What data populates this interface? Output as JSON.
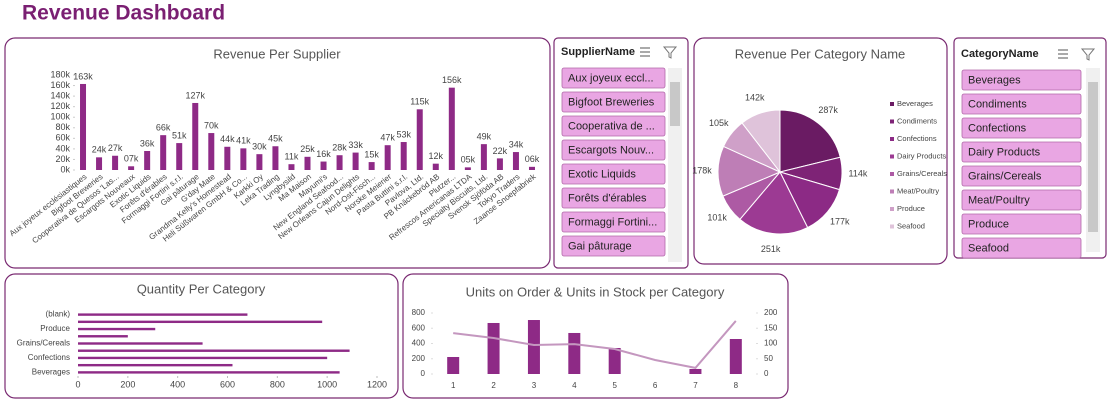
{
  "title": "Revenue Dashboard",
  "chart_data": [
    {
      "type": "bar",
      "title": "Revenue Per Supplier",
      "color": "#8e2a86",
      "categories": [
        "Aux joyeux ecclésiastiques",
        "Bigfoot Breweries",
        "Cooperativa de Quesos 'Las...",
        "Escargots Nouveaux",
        "Exotic Liquids",
        "Forêts d'érables",
        "Formaggi Fortini s.r.l.",
        "Gai pâturage",
        "G'day Mate",
        "Grandma Kelly's Homestead",
        "Heli Süßwaren GmbH & Co...",
        "Karkki Oy",
        "Leka Trading",
        "Lyngbysild",
        "Ma Maison",
        "Mayumi's",
        "New England Seafood...",
        "New Orleans Cajun Delights",
        "Nord-Ost-Fisch...",
        "Norske Meierier",
        "Pasta Buttini s.r.l.",
        "Pavlova, Ltd.",
        "PB Knäckebröd AB",
        "Plutzer...",
        "Refrescos Americanas LTDA",
        "Specialty Biscuits, Ltd.",
        "Svensk Sjöföda AB",
        "Tokyo Traders",
        "Zaanse Snoepfabriek"
      ],
      "values": [
        163000,
        24000,
        27000,
        7000,
        36000,
        66000,
        51000,
        127000,
        70000,
        44000,
        41000,
        30000,
        45000,
        11000,
        25000,
        16000,
        28000,
        33000,
        15000,
        47000,
        53000,
        115000,
        12000,
        156000,
        5000,
        49000,
        22000,
        34000,
        6000
      ],
      "value_labels": [
        "163k",
        "24k",
        "27k",
        "07k",
        "36k",
        "66k",
        "51k",
        "127k",
        "70k",
        "44k",
        "41k",
        "30k",
        "45k",
        "11k",
        "25k",
        "16k",
        "28k",
        "33k",
        "15k",
        "47k",
        "53k",
        "115k",
        "12k",
        "156k",
        "05k",
        "49k",
        "22k",
        "34k",
        "06k"
      ],
      "ylim": [
        0,
        180000
      ],
      "yticks": [
        {
          "value": 0,
          "label": "0k"
        },
        {
          "value": 20000,
          "label": "20k"
        },
        {
          "value": 40000,
          "label": "40k"
        },
        {
          "value": 60000,
          "label": "60k"
        },
        {
          "value": 80000,
          "label": "80k"
        },
        {
          "value": 100000,
          "label": "100k"
        },
        {
          "value": 120000,
          "label": "120k"
        },
        {
          "value": 140000,
          "label": "140k"
        },
        {
          "value": 160000,
          "label": "160k"
        },
        {
          "value": 180000,
          "label": "180k"
        }
      ]
    },
    {
      "type": "pie",
      "title": "Revenue Per Category Name",
      "categories": [
        "Beverages",
        "Condiments",
        "Confections",
        "Dairy Products",
        "Grains/Cereals",
        "Meat/Poultry",
        "Produce",
        "Seafood"
      ],
      "values": [
        287000,
        114000,
        177000,
        251000,
        101000,
        178000,
        105000,
        142000
      ],
      "value_labels": [
        "287k",
        "114k",
        "177k",
        "251k",
        "101k",
        "178k",
        "105k",
        "142k"
      ],
      "colors": [
        "#6a1b63",
        "#7e2376",
        "#8c2a85",
        "#9c3a93",
        "#ad5aa4",
        "#be7eb6",
        "#cfa0c8",
        "#dfc3da"
      ]
    },
    {
      "type": "bar",
      "horizontal": true,
      "title": "Quantity Per Category",
      "color": "#8e2a86",
      "categories": [
        "Beverages",
        null,
        "Confections",
        null,
        "Grains/Cereals",
        null,
        "Produce",
        null,
        "(blank)"
      ],
      "values": [
        1050,
        620,
        1000,
        1090,
        500,
        200,
        310,
        980,
        680
      ],
      "xlim": [
        0,
        1200
      ],
      "xticks": [
        0,
        200,
        400,
        600,
        800,
        1000,
        1200
      ]
    },
    {
      "type": "combo",
      "title": "Units on Order & Units in Stock per Category",
      "categories": [
        "1",
        "2",
        "3",
        "4",
        "5",
        "6",
        "7",
        "8"
      ],
      "series": [
        {
          "type": "bar",
          "color": "#8e2a86",
          "values": [
            223,
            669,
            708,
            538,
            341,
            0,
            66,
            459
          ]
        },
        {
          "type": "line",
          "axis": "y2",
          "color": "#c497bf",
          "values": [
            134,
            118,
            95,
            98,
            82,
            46,
            20,
            174
          ]
        }
      ],
      "ylim": [
        0,
        800
      ],
      "yticks": [
        0,
        200,
        400,
        600,
        800
      ],
      "y2lim": [
        0,
        200
      ],
      "y2ticks": [
        0,
        50,
        100,
        150,
        200
      ]
    }
  ],
  "slicers": [
    {
      "title": "SupplierName",
      "items": [
        "Aux joyeux eccl...",
        "Bigfoot Breweries",
        "Cooperativa de ...",
        "Escargots Nouv...",
        "Exotic Liquids",
        "Forêts d'érables",
        "Formaggi Fortini...",
        "Gai pâturage"
      ]
    },
    {
      "title": "CategoryName",
      "items": [
        "Beverages",
        "Condiments",
        "Confections",
        "Dairy Products",
        "Grains/Cereals",
        "Meat/Poultry",
        "Produce",
        "Seafood"
      ]
    }
  ]
}
